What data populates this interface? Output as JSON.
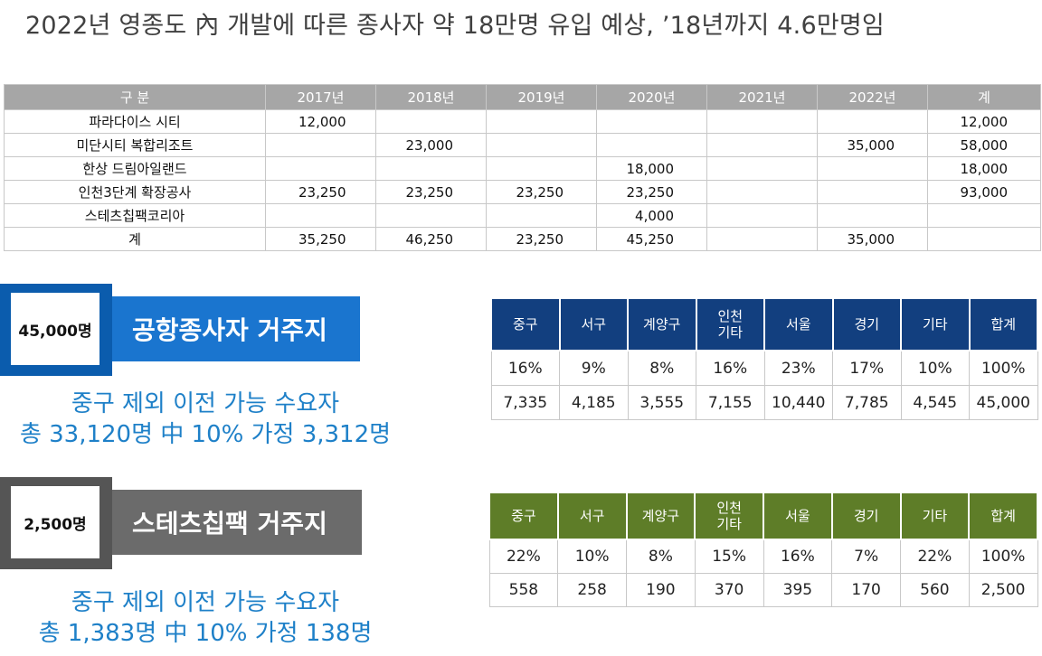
{
  "title": "2022년 영종도 內 개발에 따른 종사자  약 18만명 유입 예상,  ’18년까지 4.6만명임",
  "summary_table": {
    "headers": [
      "구 분",
      "2017년",
      "2018년",
      "2019년",
      "2020년",
      "2021년",
      "2022년",
      "계"
    ],
    "rows": [
      [
        "파라다이스 시티",
        "12,000",
        "",
        "",
        "",
        "",
        "",
        "12,000"
      ],
      [
        "미단시티 복합리조트",
        "",
        "23,000",
        "",
        "",
        "",
        "35,000",
        "58,000"
      ],
      [
        "한상 드림아일랜드",
        "",
        "",
        "",
        "18,000",
        "",
        "",
        "18,000"
      ],
      [
        "인천3단계 확장공사",
        "23,250",
        "23,250",
        "23,250",
        "23,250",
        "",
        "",
        "93,000"
      ],
      [
        "스테츠칩팩코리아",
        "",
        "",
        "",
        "4,000",
        "",
        "",
        ""
      ],
      [
        "계",
        "35,250",
        "46,250",
        "23,250",
        "45,250",
        "",
        "35,000",
        ""
      ]
    ]
  },
  "airport_workers": {
    "count": "45,000명",
    "label": "공항종사자 거주지",
    "note_line1": "중구 제외 이전 가능 수요자",
    "note_line2": "총 33,120명 中 10% 가정 3,312명",
    "headers": [
      "중구",
      "서구",
      "계양구",
      "인천\n기타",
      "서울",
      "경기",
      "기타",
      "합계"
    ],
    "percent_row": [
      "16%",
      "9%",
      "8%",
      "16%",
      "23%",
      "17%",
      "10%",
      "100%"
    ],
    "count_row": [
      "7,335",
      "4,185",
      "3,555",
      "7,155",
      "10,440",
      "7,785",
      "4,545",
      "45,000"
    ]
  },
  "statschippac_workers": {
    "count": "2,500명",
    "label": "스테츠칩팩 거주지",
    "note_line1": "중구 제외 이전 가능 수요자",
    "note_line2": "총 1,383명 中 10% 가정 138명",
    "headers": [
      "중구",
      "서구",
      "계양구",
      "인천\n기타",
      "서울",
      "경기",
      "기타",
      "합계"
    ],
    "percent_row": [
      "22%",
      "10%",
      "8%",
      "15%",
      "16%",
      "7%",
      "22%",
      "100%"
    ],
    "count_row": [
      "558",
      "258",
      "190",
      "370",
      "395",
      "170",
      "560",
      "2,500"
    ]
  },
  "colors": {
    "title": "#404040",
    "table_header_gray": "#a6a6a6",
    "blue_box": "#0b5cad",
    "blue_bar": "#1a75cf",
    "gray_box": "#555555",
    "gray_bar": "#6b6b6b",
    "note_blue": "#1e80c8",
    "dist_header_blue": "#123f7f",
    "dist_header_green": "#5e7d28"
  }
}
